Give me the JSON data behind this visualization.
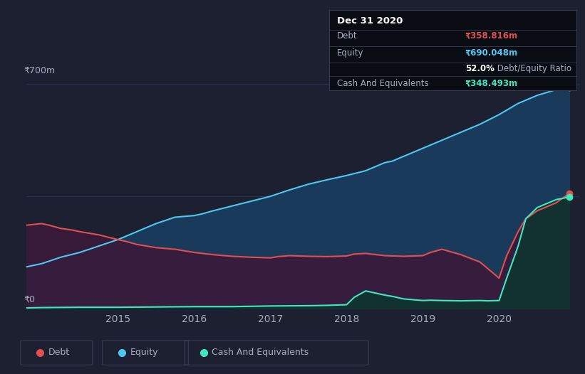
{
  "bg_color": "#1c2030",
  "plot_bg_color": "#1c2030",
  "title": "Dec 31 2020",
  "debt_label": "Debt",
  "equity_label": "Equity",
  "cash_label": "Cash And Equivalents",
  "debt_value": "₹358.816m",
  "equity_value": "₹690.048m",
  "de_ratio": "52.0%",
  "cash_value": "₹348.493m",
  "ylabel": "₹700m",
  "y0label": "₹0",
  "debt_color": "#e05050",
  "equity_color": "#4dc8f0",
  "cash_color": "#40e8c0",
  "equity_fill": "#1a3a5c",
  "debt_fill": "#3a1a3a",
  "cash_fill": "#0d3530",
  "grid_color": "#2a3050",
  "text_color": "#a8aec0",
  "tooltip_bg": "#0a0c14",
  "tooltip_border": "#383a50",
  "xtick_labels": [
    "2015",
    "2016",
    "2017",
    "2018",
    "2019",
    "2020"
  ],
  "xtick_pos": [
    2015,
    2016,
    2017,
    2018,
    2019,
    2020
  ],
  "equity_x": [
    2013.8,
    2014.0,
    2014.25,
    2014.5,
    2014.75,
    2015.0,
    2015.25,
    2015.5,
    2015.75,
    2016.0,
    2016.1,
    2016.25,
    2016.5,
    2016.75,
    2017.0,
    2017.25,
    2017.5,
    2017.75,
    2018.0,
    2018.25,
    2018.5,
    2018.6,
    2018.75,
    2019.0,
    2019.25,
    2019.5,
    2019.75,
    2020.0,
    2020.25,
    2020.5,
    2020.75,
    2020.92
  ],
  "equity_y": [
    130,
    140,
    160,
    175,
    195,
    215,
    240,
    265,
    285,
    290,
    295,
    305,
    320,
    335,
    350,
    370,
    388,
    402,
    415,
    430,
    455,
    460,
    475,
    500,
    525,
    550,
    575,
    605,
    640,
    665,
    683,
    690
  ],
  "debt_x": [
    2013.8,
    2014.0,
    2014.1,
    2014.25,
    2014.4,
    2014.5,
    2014.75,
    2015.0,
    2015.1,
    2015.25,
    2015.5,
    2015.75,
    2016.0,
    2016.25,
    2016.5,
    2016.75,
    2017.0,
    2017.1,
    2017.25,
    2017.5,
    2017.75,
    2018.0,
    2018.1,
    2018.25,
    2018.5,
    2018.75,
    2019.0,
    2019.1,
    2019.25,
    2019.5,
    2019.75,
    2019.85,
    2020.0,
    2020.1,
    2020.25,
    2020.35,
    2020.5,
    2020.65,
    2020.75,
    2020.92
  ],
  "debt_y": [
    260,
    265,
    260,
    250,
    245,
    240,
    230,
    215,
    210,
    200,
    190,
    185,
    175,
    168,
    163,
    160,
    158,
    162,
    165,
    163,
    162,
    164,
    170,
    172,
    165,
    163,
    165,
    175,
    185,
    168,
    145,
    125,
    95,
    165,
    240,
    280,
    305,
    320,
    330,
    359
  ],
  "cash_x": [
    2013.8,
    2014.0,
    2014.5,
    2015.0,
    2015.5,
    2016.0,
    2016.5,
    2017.0,
    2017.5,
    2017.75,
    2018.0,
    2018.1,
    2018.25,
    2018.5,
    2018.6,
    2018.75,
    2019.0,
    2019.1,
    2019.25,
    2019.5,
    2019.75,
    2019.85,
    2020.0,
    2020.1,
    2020.25,
    2020.35,
    2020.5,
    2020.65,
    2020.75,
    2020.92
  ],
  "cash_y": [
    2,
    3,
    4,
    4,
    5,
    6,
    6,
    8,
    9,
    10,
    12,
    35,
    55,
    42,
    38,
    30,
    25,
    26,
    25,
    24,
    25,
    24,
    25,
    95,
    195,
    280,
    315,
    330,
    340,
    348
  ]
}
